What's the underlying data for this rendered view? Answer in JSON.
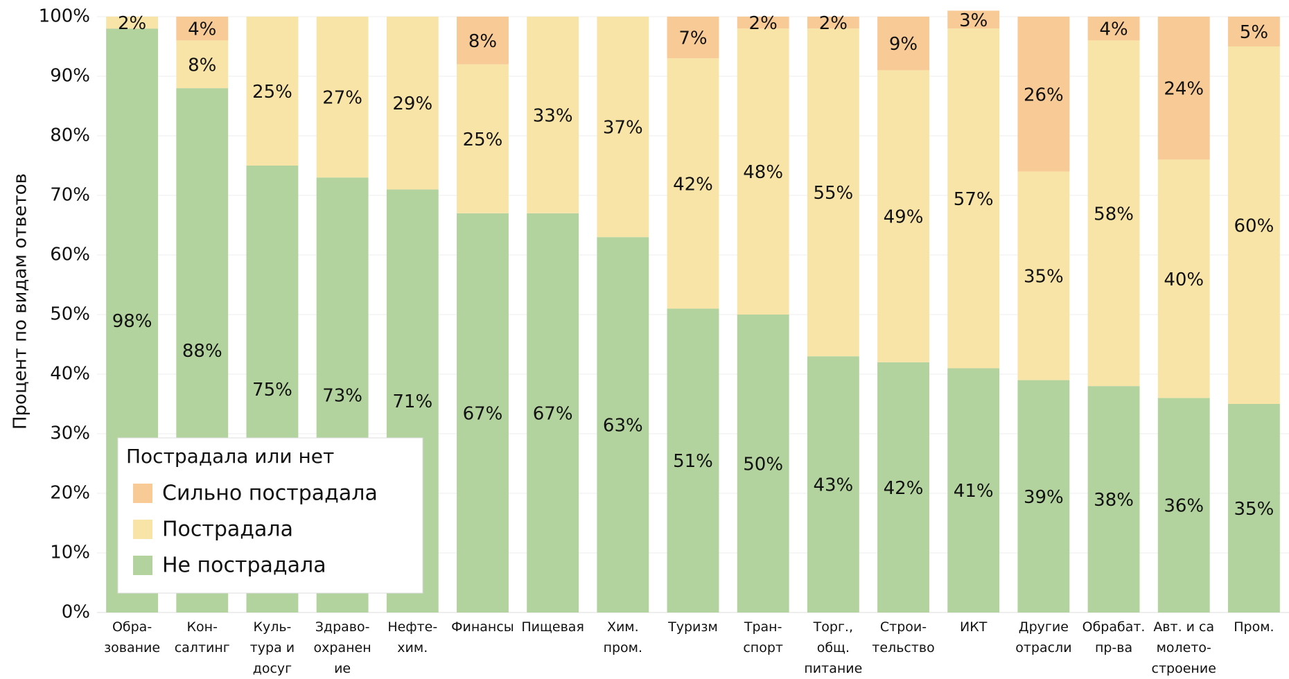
{
  "chart_data": {
    "type": "stacked_bar",
    "ylabel": "Процент по видам ответов",
    "legend_title": "Пострадала или нет",
    "legend": "lower left",
    "grid": true,
    "categories": [
      "Обра-\nзование",
      "Кон-\nсалтинг",
      "Куль-\nтура и\nдосуг",
      "Здраво-\nохранен\nие",
      "Нефте-\nхим.",
      "Финансы",
      "Пищевая",
      "Хим.\nпром.",
      "Туризм",
      "Тран-\nспорт",
      "Торг.,\nобщ.\nпитание",
      "Строи-\nтельство",
      "ИКТ",
      "Другие\nотрасли",
      "Обрабат.\nпр-ва",
      "Авт. и са\nмолето-\nстроение",
      "Пром."
    ],
    "ylim": [
      0,
      100
    ],
    "yticks": [
      {
        "value": 0,
        "label": "0%"
      },
      {
        "value": 10,
        "label": "10%"
      },
      {
        "value": 20,
        "label": "20%"
      },
      {
        "value": 30,
        "label": "30%"
      },
      {
        "value": 40,
        "label": "40%"
      },
      {
        "value": 50,
        "label": "50%"
      },
      {
        "value": 60,
        "label": "60%"
      },
      {
        "value": 70,
        "label": "70%"
      },
      {
        "value": 80,
        "label": "80%"
      },
      {
        "value": 90,
        "label": "90%"
      },
      {
        "value": 100,
        "label": "100%"
      }
    ],
    "series": [
      {
        "name": "Не пострадала",
        "color": "#b2d39e",
        "values": [
          98,
          88,
          75,
          73,
          71,
          67,
          67,
          63,
          51,
          50,
          43,
          42,
          41,
          39,
          38,
          36,
          35
        ],
        "value_labels": [
          "98%",
          "88%",
          "75%",
          "73%",
          "71%",
          "67%",
          "67%",
          "63%",
          "51%",
          "50%",
          "43%",
          "42%",
          "41%",
          "39%",
          "38%",
          "36%",
          "35%"
        ]
      },
      {
        "name": "Пострадала",
        "color": "#f9e4a8",
        "values": [
          2,
          8,
          25,
          27,
          29,
          25,
          33,
          37,
          42,
          48,
          55,
          49,
          57,
          35,
          58,
          40,
          60
        ],
        "value_labels": [
          "2%",
          "8%",
          "25%",
          "27%",
          "29%",
          "25%",
          "33%",
          "37%",
          "42%",
          "48%",
          "55%",
          "49%",
          "57%",
          "35%",
          "58%",
          "40%",
          "60%"
        ]
      },
      {
        "name": "Сильно пострадала",
        "color": "#f8ca96",
        "values": [
          null,
          4,
          null,
          null,
          null,
          8,
          null,
          null,
          7,
          2,
          2,
          9,
          3,
          26,
          4,
          24,
          5
        ],
        "value_labels": [
          null,
          "4%",
          null,
          null,
          null,
          "8%",
          null,
          null,
          "7%",
          "2%",
          "2%",
          "9%",
          "3%",
          "26%",
          "4%",
          "24%",
          "5%"
        ]
      }
    ]
  }
}
